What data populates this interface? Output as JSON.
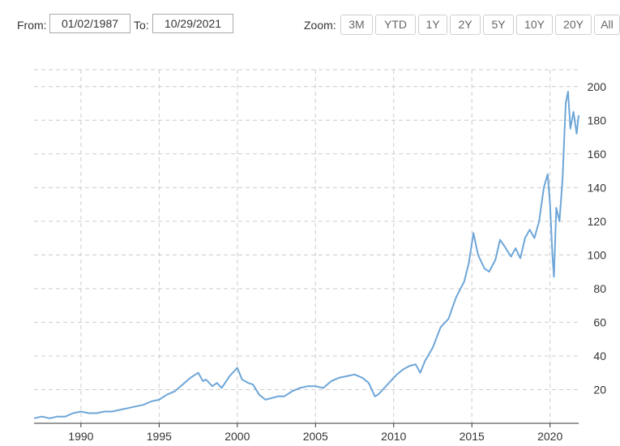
{
  "range": {
    "from_label": "From:",
    "from_value": "01/02/1987",
    "to_label": "To:",
    "to_value": "10/29/2021"
  },
  "zoom": {
    "label": "Zoom:",
    "buttons": [
      "3M",
      "YTD",
      "1Y",
      "2Y",
      "5Y",
      "10Y",
      "20Y",
      "All"
    ]
  },
  "chart_data": {
    "type": "line",
    "title": "",
    "xlabel": "",
    "ylabel": "",
    "xlim": [
      1987.0,
      2021.83
    ],
    "ylim": [
      0,
      210
    ],
    "x_ticks": [
      1990,
      1995,
      2000,
      2005,
      2010,
      2015,
      2020
    ],
    "y_ticks": [
      20,
      40,
      60,
      80,
      100,
      120,
      140,
      160,
      180,
      200
    ],
    "y_axis_side": "right",
    "grid": true,
    "line_color": "#6ea6d8",
    "series": [
      {
        "x": [
          1987.0,
          1987.5,
          1988.0,
          1988.5,
          1989.0,
          1989.5,
          1990.0,
          1990.5,
          1991.0,
          1991.5,
          1992.0,
          1992.5,
          1993.0,
          1993.5,
          1994.0,
          1994.5,
          1995.0,
          1995.5,
          1996.0,
          1996.5,
          1997.0,
          1997.5,
          1997.8,
          1998.0,
          1998.4,
          1998.7,
          1999.0,
          1999.5,
          2000.0,
          2000.3,
          2000.7,
          2001.0,
          2001.4,
          2001.8,
          2002.2,
          2002.6,
          2003.0,
          2003.5,
          2004.0,
          2004.5,
          2005.0,
          2005.5,
          2006.0,
          2006.5,
          2007.0,
          2007.5,
          2008.0,
          2008.4,
          2008.8,
          2009.0,
          2009.4,
          2009.8,
          2010.2,
          2010.6,
          2011.0,
          2011.4,
          2011.7,
          2012.0,
          2012.5,
          2013.0,
          2013.5,
          2014.0,
          2014.5,
          2014.8,
          2015.1,
          2015.4,
          2015.8,
          2016.1,
          2016.5,
          2016.8,
          2017.1,
          2017.5,
          2017.8,
          2018.1,
          2018.4,
          2018.7,
          2019.0,
          2019.3,
          2019.6,
          2019.85,
          2020.0,
          2020.15,
          2020.25,
          2020.4,
          2020.6,
          2020.8,
          2021.0,
          2021.15,
          2021.3,
          2021.5,
          2021.7,
          2021.83
        ],
        "y": [
          3,
          4,
          3,
          4,
          4,
          6,
          7,
          6,
          6,
          7,
          7,
          8,
          9,
          10,
          11,
          13,
          14,
          17,
          19,
          23,
          27,
          30,
          25,
          26,
          22,
          24,
          21,
          28,
          33,
          26,
          24,
          23,
          17,
          14,
          15,
          16,
          16,
          19,
          21,
          22,
          22,
          21,
          25,
          27,
          28,
          29,
          27,
          24,
          16,
          17,
          21,
          25,
          29,
          32,
          34,
          35,
          30,
          37,
          45,
          57,
          62,
          75,
          84,
          95,
          113,
          100,
          92,
          90,
          97,
          109,
          105,
          99,
          104,
          98,
          110,
          115,
          110,
          120,
          140,
          148,
          130,
          100,
          87,
          128,
          120,
          145,
          190,
          197,
          175,
          185,
          172,
          183
        ]
      }
    ]
  }
}
